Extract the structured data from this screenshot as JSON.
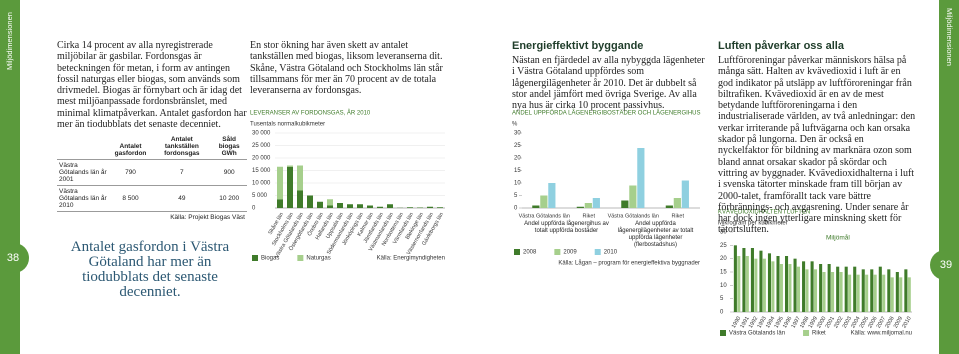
{
  "side_label": "Miljödimensionen",
  "page_numbers": [
    "38",
    "39"
  ],
  "col1": {
    "text": "Cirka 14 procent av alla nyregistrerade miljöbilar är gasbilar. Fordonsgas är beteckningen för metan, i form av antingen fossil naturgas eller biogas, som används som drivmedel. Biogas är förnybart och är idag det mest miljöanpassade fordonsbränslet, med minimal klimatpåverkan. Antalet gasfordon har mer än tiodubblats det senaste decenniet.",
    "table": {
      "headers": [
        "Antalet gasfordon",
        "Antalet tankställen fordonsgas",
        "Såld biogas GWh"
      ],
      "rows": [
        {
          "label": "Västra Götalands län år 2001",
          "cells": [
            "790",
            "7",
            "900"
          ]
        },
        {
          "label": "Västra Götalands län år 2010",
          "cells": [
            "8 500",
            "49",
            "10 200"
          ]
        }
      ],
      "source": "Källa: Projekt Biogas Väst"
    },
    "quote": "Antalet gasfordon i Västra Götaland har mer än tiodubblats det senaste decenniet."
  },
  "col2": {
    "text": "En stor ökning har även skett av antalet tankställen med biogas, liksom leveranserna dit. Skåne, Västra Götaland och Stockholms län står tillsammans för mer än 70 procent av de totala leveranserna av fordonsgas."
  },
  "col3": {
    "heading": "Energieffektivt byggande",
    "text": "Nästan en fjärdedel av alla nybyggda lägenheter i Västra Götaland uppfördes som lågenergilägenheter år 2010. Det är dubbelt så stor andel jämfört med övriga Sverige. Av alla nya hus är cirka 10 procent passivhus."
  },
  "col4": {
    "heading": "Luften påverkar oss alla",
    "text": "Luftföroreningar påverkar människors hälsa på många sätt. Halten av kvävedioxid i luft är en god indikator på utsläpp av luftföroreningar från biltrafiken. Kvävedioxid är en av de mest betydande luftföroreningarna i den industrialiserade världen, av två anledningar: den verkar irriterande på luftvägarna och kan orsaka skador på lungorna. Den är också en nyckelfaktor för bildning av marknära ozon som bland annat orsakar skador på skördar och vittring av byggnader. Kvävedioxidhalterna i luft i svenska tätorter minskade fram till början av 2000-talet, framförallt tack vare bättre förbrännings- och avgasrening. Under senare år har dock ingen ytterligare minskning skett för tätortsluften."
  },
  "chart_data": [
    {
      "type": "bar",
      "stacked": true,
      "title": "LEVERANSER AV FORDONSGAS, ÅR 2010",
      "y_label": "Tusentals normalkubikmeter",
      "source": "Källa: Energimyndigheten",
      "categories": [
        "Skåne län",
        "Stockholms län",
        "Västra Götalands län",
        "Östergötlands län",
        "Örebro län",
        "Hallands län",
        "Uppsala län",
        "Södermanlands län",
        "Jönköpings län",
        "Kalmar län",
        "Jämtlands län",
        "Västmanlands län",
        "Norrbottens län",
        "Värmlands län",
        "Blekinge län",
        "Västernorrlands län",
        "Gävleborgs län"
      ],
      "series": [
        {
          "name": "Biogas",
          "color": "#3f7b2a",
          "values": [
            3500,
            16500,
            7000,
            5000,
            2500,
            1000,
            2000,
            1500,
            1500,
            1000,
            500,
            1500,
            100,
            300,
            200,
            500,
            300
          ]
        },
        {
          "name": "Naturgas",
          "color": "#a6cf8c",
          "values": [
            13000,
            500,
            10000,
            0,
            0,
            2500,
            0,
            0,
            0,
            0,
            0,
            0,
            0,
            0,
            0,
            0,
            0
          ]
        }
      ],
      "ylim": [
        0,
        30000
      ],
      "yticks": [
        0,
        {
          "value": 5000,
          "label": "5 000"
        },
        {
          "value": 10000,
          "label": "10 000"
        },
        {
          "value": 15000,
          "label": "15 000"
        },
        {
          "value": 20000,
          "label": "20 000"
        },
        {
          "value": 25000,
          "label": "25 000"
        },
        {
          "value": 30000,
          "label": "30 000"
        }
      ],
      "grid": true
    },
    {
      "type": "bar",
      "stacked": false,
      "title": "ANDEL UPPFÖRDA LÅGENERGIBOSTÄDER OCH LÅGENERGIHUS",
      "y_label": "%",
      "source": "Källa: Lågan – program för energieffektiva byggnader",
      "categories": [
        "Västra Götalands län",
        "Riket",
        "Västra Götalands län",
        "Riket"
      ],
      "groups": [
        "Andel uppförda lågenergihus av totalt uppförda bostäder",
        "Andel uppförda lågenergilägenheter av totalt uppförda lägenheter (flerbostadshus)"
      ],
      "series": [
        {
          "name": "2008",
          "color": "#3f7b2a",
          "values": [
            1,
            0.5,
            3,
            1
          ]
        },
        {
          "name": "2009",
          "color": "#a6cf8c",
          "values": [
            5,
            2,
            9,
            4
          ]
        },
        {
          "name": "2010",
          "color": "#8fd0e0",
          "values": [
            10,
            4,
            24,
            11
          ]
        }
      ],
      "ylim": [
        0,
        30
      ],
      "yticks": [
        0,
        5,
        10,
        15,
        20,
        25,
        30
      ],
      "grid": false
    },
    {
      "type": "bar",
      "stacked": false,
      "title": "KVÄVEDIOXIDHALTEN I LUFTEN",
      "y_label": "Mikrogram per kubikmeter",
      "source": "Källa: www.miljomal.nu",
      "annotation": "Miljömål",
      "categories": [
        "1990",
        "1991",
        "1992",
        "1993",
        "1994",
        "1995",
        "1996",
        "1997",
        "1998",
        "1999",
        "2000",
        "2001",
        "2002",
        "2003",
        "2004",
        "2005",
        "2006",
        "2007",
        "2008",
        "2009",
        "2010"
      ],
      "series": [
        {
          "name": "Västra Götalands län",
          "color": "#3f7b2a",
          "values": [
            25,
            24,
            24,
            23,
            22,
            21,
            21,
            20,
            19,
            19,
            18,
            18,
            17,
            17,
            17,
            16,
            16,
            17,
            16,
            15,
            16
          ]
        },
        {
          "name": "Riket",
          "color": "#a6cf8c",
          "values": [
            21,
            21,
            20,
            20,
            19,
            18,
            18,
            17,
            16,
            16,
            15,
            15,
            15,
            14,
            14,
            14,
            14,
            14,
            13,
            13,
            13
          ]
        }
      ],
      "ylim": [
        0,
        30
      ],
      "yticks": [
        0,
        5,
        10,
        15,
        20,
        25,
        30
      ],
      "grid": false
    }
  ]
}
